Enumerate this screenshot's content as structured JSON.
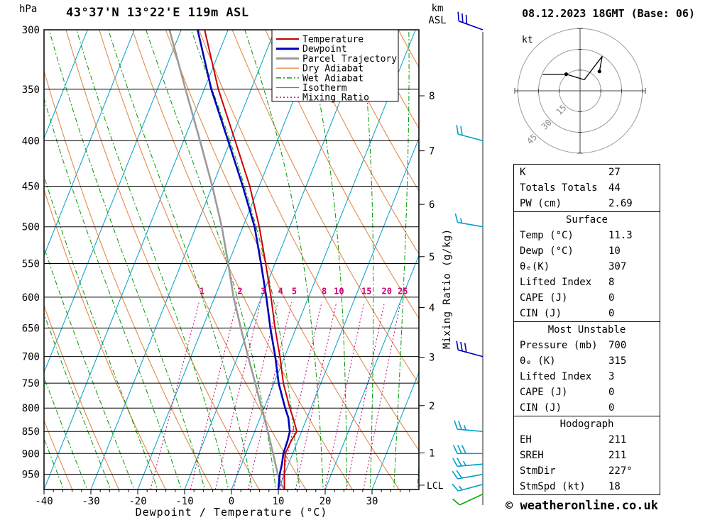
{
  "header": {
    "datetime": "08.12.2023 18GMT (Base: 06)"
  },
  "footer": {
    "copyright": "© weatheronline.co.uk"
  },
  "chart_data": {
    "type": "skewt-log-p-sounding",
    "title": "43°37'N 13°22'E 119m ASL",
    "xlabel": "Dewpoint / Temperature (°C)",
    "pressure_unit": "hPa",
    "altitude_unit": "km ASL",
    "mixing_ratio_label": "Mixing Ratio (g/kg)",
    "lcl_label": "LCL",
    "x_range_c": [
      -40,
      40
    ],
    "x_ticks_c": [
      -40,
      -30,
      -20,
      -10,
      0,
      10,
      20,
      30
    ],
    "pressure_range_hpa": [
      300,
      988
    ],
    "pressure_ticks_hpa": [
      300,
      350,
      400,
      450,
      500,
      550,
      600,
      650,
      700,
      750,
      800,
      850,
      900,
      950
    ],
    "altitude_ticks_km": [
      1,
      2,
      3,
      4,
      5,
      6,
      7,
      8
    ],
    "skew": 0.4,
    "isotherm_step_c": 10,
    "mixing_ratio_lines_gkg": [
      1,
      2,
      3,
      4,
      5,
      8,
      10,
      15,
      20,
      25
    ],
    "temperature_profile_p_c": [
      [
        988,
        11.3
      ],
      [
        950,
        10.0
      ],
      [
        925,
        9.2
      ],
      [
        900,
        8.4
      ],
      [
        870,
        8.6
      ],
      [
        850,
        9.0
      ],
      [
        820,
        7.0
      ],
      [
        800,
        5.5
      ],
      [
        750,
        2.0
      ],
      [
        700,
        -1.0
      ],
      [
        650,
        -4.5
      ],
      [
        600,
        -8.0
      ],
      [
        550,
        -12.0
      ],
      [
        500,
        -16.5
      ],
      [
        450,
        -22.0
      ],
      [
        400,
        -29.0
      ],
      [
        350,
        -37.0
      ],
      [
        300,
        -45.0
      ]
    ],
    "dewpoint_profile_p_c": [
      [
        988,
        10.0
      ],
      [
        950,
        9.0
      ],
      [
        925,
        8.6
      ],
      [
        900,
        8.0
      ],
      [
        870,
        7.8
      ],
      [
        850,
        7.5
      ],
      [
        820,
        6.0
      ],
      [
        800,
        4.5
      ],
      [
        750,
        1.0
      ],
      [
        700,
        -2.0
      ],
      [
        650,
        -5.5
      ],
      [
        600,
        -9.0
      ],
      [
        550,
        -13.0
      ],
      [
        500,
        -17.5
      ],
      [
        450,
        -23.5
      ],
      [
        400,
        -30.5
      ],
      [
        350,
        -38.5
      ],
      [
        300,
        -46.5
      ]
    ],
    "parcel_profile_p_c": [
      [
        988,
        11.3
      ],
      [
        975,
        10.2
      ],
      [
        950,
        8.6
      ],
      [
        900,
        5.8
      ],
      [
        850,
        2.8
      ],
      [
        800,
        -0.5
      ],
      [
        750,
        -4.0
      ],
      [
        700,
        -7.8
      ],
      [
        650,
        -11.8
      ],
      [
        600,
        -16.0
      ],
      [
        550,
        -20.0
      ],
      [
        500,
        -24.5
      ],
      [
        450,
        -30.0
      ],
      [
        400,
        -36.5
      ],
      [
        350,
        -44.0
      ],
      [
        300,
        -52.5
      ]
    ],
    "wind_levels": [
      {
        "p_hpa": 300,
        "dir_deg": 290,
        "speed_kt": 30,
        "color": "#0000bb"
      },
      {
        "p_hpa": 400,
        "dir_deg": 285,
        "speed_kt": 20,
        "color": "#00a0c8"
      },
      {
        "p_hpa": 500,
        "dir_deg": 280,
        "speed_kt": 15,
        "color": "#00a0c8"
      },
      {
        "p_hpa": 700,
        "dir_deg": 285,
        "speed_kt": 30,
        "color": "#0000bb"
      },
      {
        "p_hpa": 850,
        "dir_deg": 275,
        "speed_kt": 25,
        "color": "#00a0c8"
      },
      {
        "p_hpa": 900,
        "dir_deg": 270,
        "speed_kt": 30,
        "color": "#00a0c8"
      },
      {
        "p_hpa": 925,
        "dir_deg": 265,
        "speed_kt": 25,
        "color": "#00a0c8"
      },
      {
        "p_hpa": 950,
        "dir_deg": 260,
        "speed_kt": 20,
        "color": "#00a0c8"
      },
      {
        "p_hpa": 975,
        "dir_deg": 255,
        "speed_kt": 15,
        "color": "#00a0c8"
      },
      {
        "p_hpa": 1000,
        "dir_deg": 245,
        "speed_kt": 10,
        "color": "#00aa00"
      }
    ],
    "hodograph": {
      "unit_label": "kt",
      "rings_kt": [
        15,
        30,
        45
      ],
      "trace_kt": [
        [
          -27,
          12
        ],
        [
          -10,
          12
        ],
        [
          3,
          8
        ],
        [
          16,
          25
        ],
        [
          14,
          14
        ]
      ],
      "marker_points_kt": [
        [
          -10,
          12
        ],
        [
          14,
          14
        ]
      ]
    },
    "legend": [
      {
        "label": "Temperature",
        "color": "#cc0000",
        "style": "solid",
        "width": 2
      },
      {
        "label": "Dewpoint",
        "color": "#0000bb",
        "style": "solid",
        "width": 3
      },
      {
        "label": "Parcel Trajectory",
        "color": "#9a9a9a",
        "style": "solid",
        "width": 3
      },
      {
        "label": "Dry Adiabat",
        "color": "#e0813c",
        "style": "solid",
        "width": 1.3
      },
      {
        "label": "Wet Adiabat",
        "color": "#009900",
        "style": "dashdot",
        "width": 1.3
      },
      {
        "label": "Isotherm",
        "color": "#00a0c8",
        "style": "solid",
        "width": 1.3
      },
      {
        "label": "Mixing Ratio",
        "color": "#cc0077",
        "style": "dotted",
        "width": 1.3
      }
    ],
    "colors": {
      "temperature": "#cc0000",
      "dewpoint": "#0000bb",
      "parcel": "#9a9a9a",
      "dry_adiabat": "#e0813c",
      "wet_adiabat": "#009900",
      "isotherm": "#00a0c8",
      "mixing_ratio": "#cc0077",
      "grid": "#000000"
    }
  },
  "stats": {
    "groups": [
      {
        "header": null,
        "rows": [
          [
            "K",
            "27"
          ],
          [
            "Totals Totals",
            "44"
          ],
          [
            "PW (cm)",
            "2.69"
          ]
        ]
      },
      {
        "header": "Surface",
        "rows": [
          [
            "Temp (°C)",
            "11.3"
          ],
          [
            "Dewp (°C)",
            "10"
          ],
          [
            "θₑ(K)",
            "307"
          ],
          [
            "Lifted Index",
            "8"
          ],
          [
            "CAPE (J)",
            "0"
          ],
          [
            "CIN (J)",
            "0"
          ]
        ]
      },
      {
        "header": "Most Unstable",
        "rows": [
          [
            "Pressure (mb)",
            "700"
          ],
          [
            "θₑ (K)",
            "315"
          ],
          [
            "Lifted Index",
            "3"
          ],
          [
            "CAPE (J)",
            "0"
          ],
          [
            "CIN (J)",
            "0"
          ]
        ]
      },
      {
        "header": "Hodograph",
        "rows": [
          [
            "EH",
            "211"
          ],
          [
            "SREH",
            "211"
          ],
          [
            "StmDir",
            "227°"
          ],
          [
            "StmSpd (kt)",
            "18"
          ]
        ]
      }
    ]
  }
}
